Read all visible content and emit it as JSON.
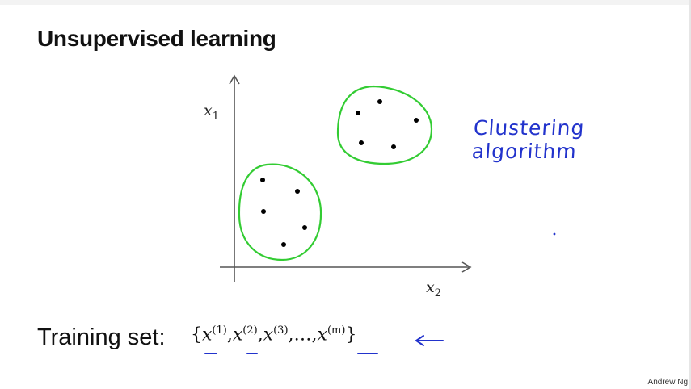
{
  "slide": {
    "title": "Unsupervised learning",
    "credit": "Andrew Ng"
  },
  "plot": {
    "x1_label": "x",
    "x1_sub": "1",
    "x2_label": "x",
    "x2_sub": "2",
    "cluster_color": "#33cc33",
    "point_color": "#000000"
  },
  "annotation": {
    "text": "Clustering algorithm",
    "color": "#2233cc"
  },
  "training_set": {
    "label": "Training set:",
    "open_brace": "{",
    "close_brace": "}",
    "var": "x",
    "sup1": "(1)",
    "sup2": "(2)",
    "sup3": "(3)",
    "ellipsis": "…",
    "supm": "(m)",
    "comma": ","
  }
}
